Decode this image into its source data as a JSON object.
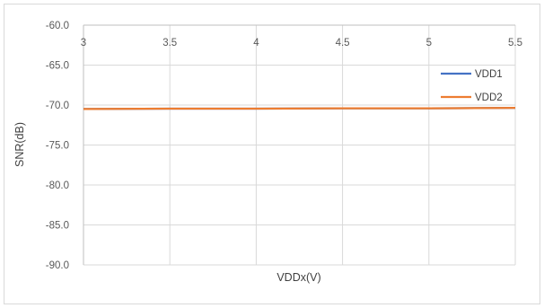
{
  "chart_data": {
    "type": "line",
    "title": "",
    "xlabel": "VDDx(V)",
    "ylabel": "SNR(dB)",
    "xlim": [
      3,
      5.5
    ],
    "ylim": [
      -90,
      -60
    ],
    "x_ticks": [
      3,
      3.5,
      4,
      4.5,
      5,
      5.5
    ],
    "x_tick_labels": [
      "3",
      "3.5",
      "4",
      "4.5",
      "5",
      "5.5"
    ],
    "y_ticks": [
      -60,
      -65,
      -70,
      -75,
      -80,
      -85,
      -90
    ],
    "y_tick_labels": [
      "-60.0",
      "-65.0",
      "-70.0",
      "-75.0",
      "-80.0",
      "-85.0",
      "-90.0"
    ],
    "x_axis_position": "top",
    "grid": true,
    "legend_position": "right",
    "series": [
      {
        "name": "VDD1",
        "color": "#4472C4",
        "x": [
          3,
          3.5,
          4,
          4.5,
          5,
          5.5
        ],
        "values": [
          -70.5,
          -70.45,
          -70.45,
          -70.4,
          -70.4,
          -70.35
        ]
      },
      {
        "name": "VDD2",
        "color": "#ED7D31",
        "x": [
          3,
          3.5,
          4,
          4.5,
          5,
          5.5
        ],
        "values": [
          -70.5,
          -70.45,
          -70.45,
          -70.4,
          -70.4,
          -70.35
        ]
      }
    ]
  }
}
